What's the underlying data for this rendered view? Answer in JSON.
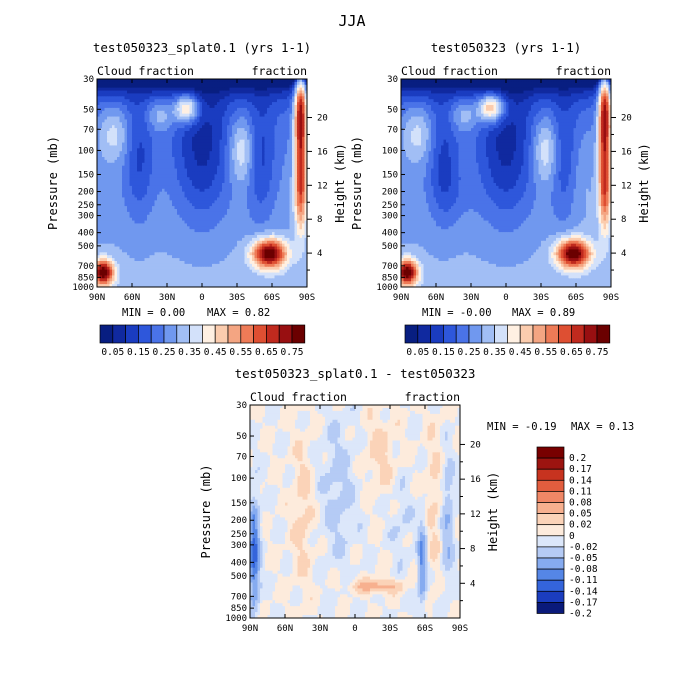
{
  "figure": {
    "title": "JJA"
  },
  "colorbar_colors": [
    "#081E81",
    "#10299F",
    "#1A3CC0",
    "#2E57DB",
    "#4A73E8",
    "#7098EF",
    "#A1BEF5",
    "#D3E1FA",
    "#FFF0E2",
    "#FBCCAE",
    "#F4A582",
    "#EE7B57",
    "#DE4F32",
    "#C02A1E",
    "#980F11",
    "#6B0000"
  ],
  "chart_data": [
    {
      "type": "heatmap",
      "title": "test050323_splat0.1 (yrs 1-1)",
      "left_label": "Cloud fraction",
      "right_label": "fraction",
      "ylabel": "Pressure (mb)",
      "y2label": "Height (km)",
      "x_ticks": [
        "90N",
        "60N",
        "30N",
        "0",
        "30S",
        "60S",
        "90S"
      ],
      "y_ticks": [
        "30",
        "50",
        "70",
        "100",
        "150",
        "200",
        "250",
        "300",
        "400",
        "500",
        "700",
        "850",
        "1000"
      ],
      "y2_ticks": [
        "20",
        "16",
        "12",
        "8",
        "4"
      ],
      "min_text": "MIN =    0.00",
      "max_text": "MAX =    0.82",
      "colorbar_labels": [
        "0.05",
        "0.15",
        "0.25",
        "0.35",
        "0.45",
        "0.55",
        "0.65",
        "0.75"
      ],
      "summary": {
        "min": 0.0,
        "max": 0.82
      }
    },
    {
      "type": "heatmap",
      "title": "test050323 (yrs 1-1)",
      "left_label": "Cloud fraction",
      "right_label": "fraction",
      "ylabel": "Pressure (mb)",
      "y2label": "Height (km)",
      "x_ticks": [
        "90N",
        "60N",
        "30N",
        "0",
        "30S",
        "60S",
        "90S"
      ],
      "y_ticks": [
        "30",
        "50",
        "70",
        "100",
        "150",
        "200",
        "250",
        "300",
        "400",
        "500",
        "700",
        "850",
        "1000"
      ],
      "y2_ticks": [
        "20",
        "16",
        "12",
        "8",
        "4"
      ],
      "min_text": "MIN =   -0.00",
      "max_text": "MAX =    0.89",
      "colorbar_labels": [
        "0.05",
        "0.15",
        "0.25",
        "0.35",
        "0.45",
        "0.55",
        "0.65",
        "0.75"
      ],
      "summary": {
        "min": -0.0,
        "max": 0.89
      }
    },
    {
      "type": "heatmap",
      "title": "test050323_splat0.1 - test050323",
      "left_label": "Cloud fraction",
      "right_label": "fraction",
      "ylabel": "Pressure (mb)",
      "y2label": "Height (km)",
      "x_ticks": [
        "90N",
        "60N",
        "30N",
        "0",
        "30S",
        "60S",
        "90S"
      ],
      "y_ticks": [
        "30",
        "50",
        "70",
        "100",
        "150",
        "200",
        "250",
        "300",
        "400",
        "500",
        "700",
        "850",
        "1000"
      ],
      "y2_ticks": [
        "20",
        "16",
        "12",
        "8",
        "4"
      ],
      "min_text": "MIN =   -0.19",
      "max_text": "MAX =    0.13",
      "colorbar_labels": [
        "0.2",
        "0.17",
        "0.14",
        "0.11",
        "0.08",
        "0.05",
        "0.02",
        "0",
        "-0.02",
        "-0.05",
        "-0.08",
        "-0.11",
        "-0.14",
        "-0.17",
        "-0.2"
      ],
      "summary": {
        "min": -0.19,
        "max": 0.13
      }
    }
  ]
}
